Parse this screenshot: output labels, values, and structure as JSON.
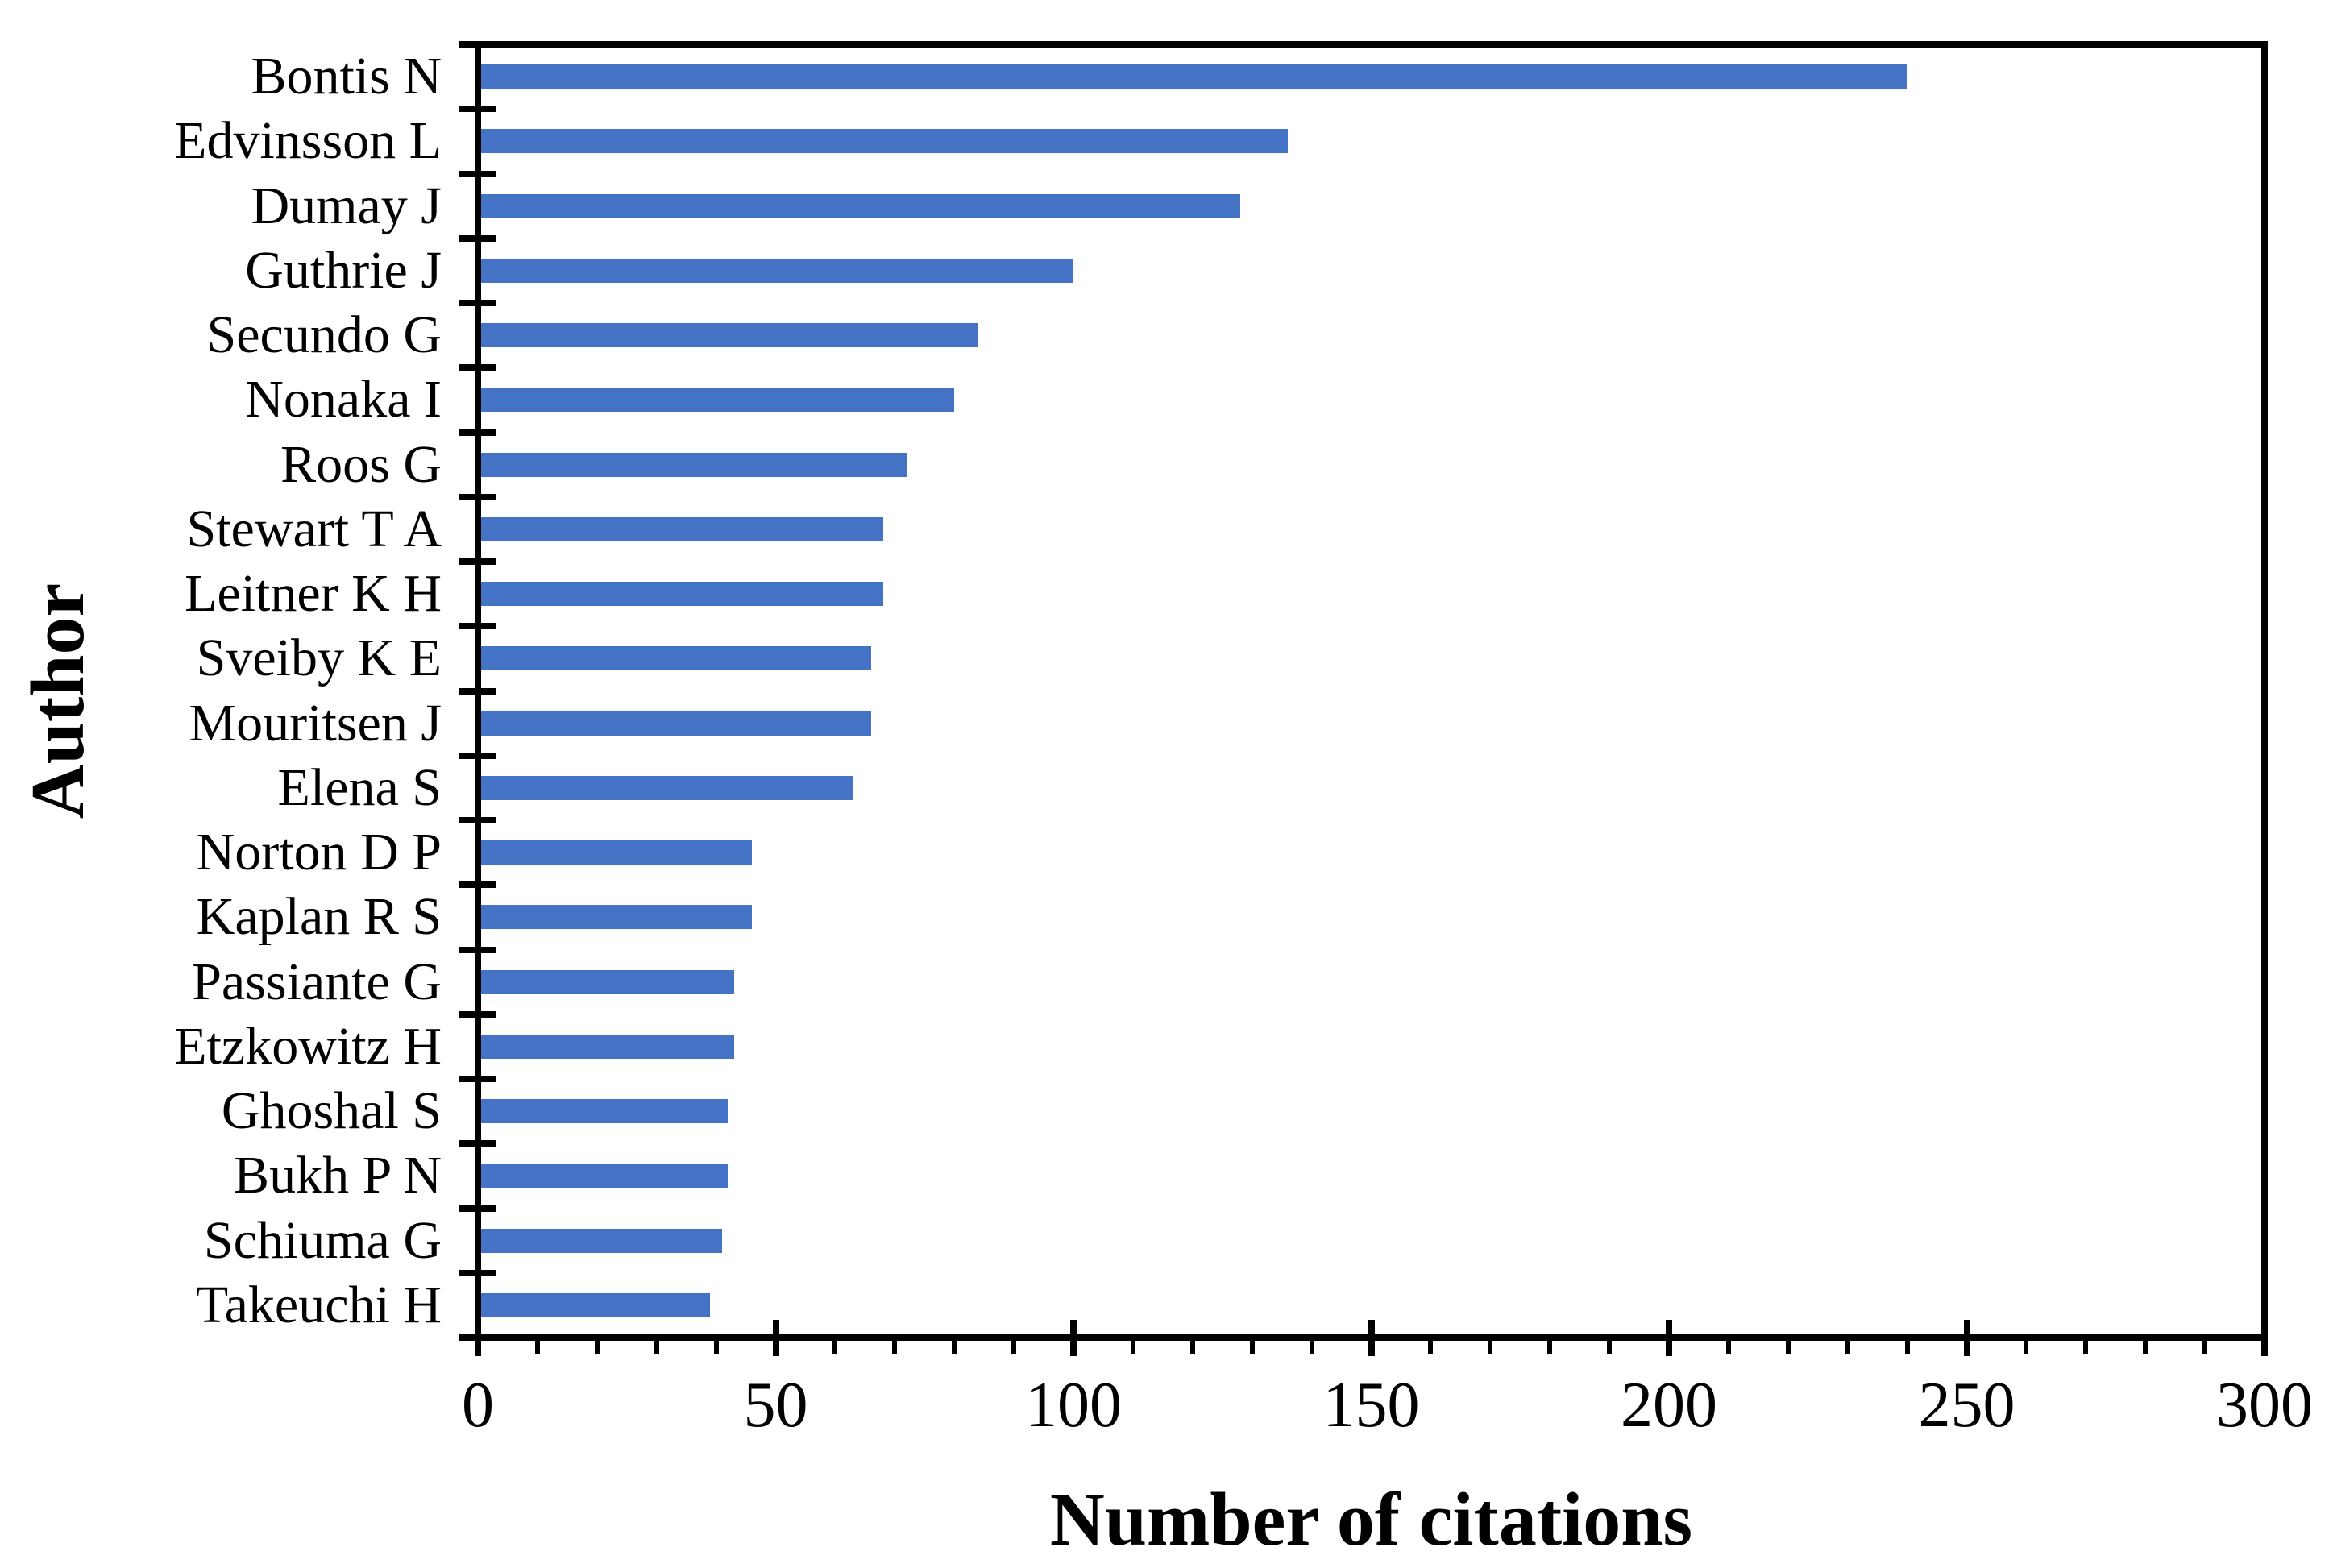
{
  "chart_data": {
    "type": "bar",
    "orientation": "horizontal",
    "title": "",
    "xlabel": "Number of citations",
    "ylabel": "Author",
    "categories": [
      "Bontis N",
      "Edvinsson L",
      "Dumay J",
      "Guthrie J",
      "Secundo G",
      "Nonaka I",
      "Roos G",
      "Stewart T A",
      "Leitner K H",
      "Sveiby K E",
      "Mouritsen J",
      "Elena S",
      "Norton D P",
      "Kaplan R S",
      "Passiante G",
      "Etzkowitz H",
      "Ghoshal S",
      "Bukh P N",
      "Schiuma G",
      "Takeuchi H"
    ],
    "values": [
      240,
      136,
      128,
      100,
      84,
      80,
      72,
      68,
      68,
      66,
      66,
      63,
      46,
      46,
      43,
      43,
      42,
      42,
      41,
      39
    ],
    "xlim": [
      0,
      300
    ],
    "x_major_ticks": [
      0,
      50,
      100,
      150,
      200,
      250,
      300
    ],
    "x_minor_tick_step": 10,
    "bar_color": "#4472C4",
    "axis_color": "#000000",
    "background_color": "#FFFFFF",
    "grid": "off",
    "legend": "none"
  }
}
